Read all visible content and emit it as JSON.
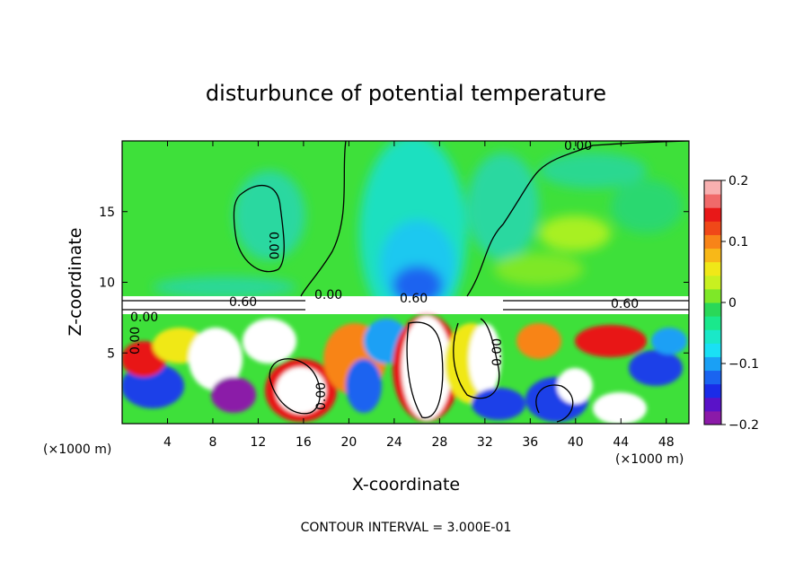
{
  "chart_data": {
    "type": "heatmap",
    "title": "disturbunce of potential temperature",
    "xlabel": "X-coordinate",
    "ylabel": "Z-coordinate",
    "x_unit_left": "(×1000 m)",
    "x_unit_right": "(×1000 m)",
    "xlim": [
      0,
      50
    ],
    "ylim": [
      0,
      20
    ],
    "x_ticks": [
      4,
      8,
      12,
      16,
      20,
      24,
      28,
      32,
      36,
      40,
      44,
      48
    ],
    "y_ticks": [
      5,
      10,
      15
    ],
    "colorbar": {
      "range": [
        -0.2,
        0.2
      ],
      "tick_values": [
        0.2,
        0.1,
        0,
        -0.1,
        -0.2
      ],
      "tick_labels": [
        "0.2",
        "0.1",
        "0",
        "−0.1",
        "−0.2"
      ],
      "colors": [
        "#8b1aa8",
        "#5a12c8",
        "#1a2ce8",
        "#1a64f0",
        "#1aa0f5",
        "#1ae0f5",
        "#1ae8c8",
        "#1ae88c",
        "#2ad858",
        "#7ee828",
        "#c8f020",
        "#f0e818",
        "#f8b818",
        "#f88418",
        "#f04818",
        "#e81818",
        "#f06a6a",
        "#f8b0b0"
      ]
    },
    "contour_labels": [
      "0.00",
      "0.00",
      "0.60",
      "0.00",
      "0.60",
      "0.60",
      "0.00",
      "0.00",
      "0.00",
      "0.00"
    ],
    "footer": "CONTOUR INTERVAL = 3.000E-01"
  }
}
